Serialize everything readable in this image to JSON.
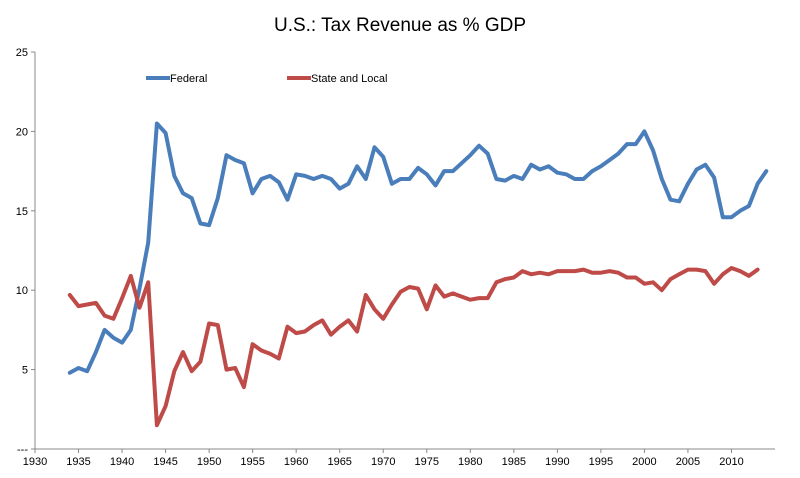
{
  "chart_data": {
    "type": "line",
    "title": "U.S.: Tax Revenue as % GDP",
    "xlabel": "",
    "ylabel": "",
    "xlim": [
      1930,
      2015
    ],
    "ylim": [
      0,
      25
    ],
    "x_ticks": [
      "1930",
      "1935",
      "1940",
      "1945",
      "1950",
      "1955",
      "1960",
      "1965",
      "1970",
      "1975",
      "1980",
      "1985",
      "1990",
      "1995",
      "2000",
      "2005",
      "2010"
    ],
    "y_ticks": [
      "---",
      "5",
      "10",
      "15",
      "20",
      "25"
    ],
    "grid": false,
    "legend": "top-left",
    "x": [
      1934,
      1935,
      1936,
      1937,
      1938,
      1939,
      1940,
      1941,
      1942,
      1943,
      1944,
      1945,
      1946,
      1947,
      1948,
      1949,
      1950,
      1951,
      1952,
      1953,
      1954,
      1955,
      1956,
      1957,
      1958,
      1959,
      1960,
      1961,
      1962,
      1963,
      1964,
      1965,
      1966,
      1967,
      1968,
      1969,
      1970,
      1971,
      1972,
      1973,
      1974,
      1975,
      1976,
      1977,
      1978,
      1979,
      1980,
      1981,
      1982,
      1983,
      1984,
      1985,
      1986,
      1987,
      1988,
      1989,
      1990,
      1991,
      1992,
      1993,
      1994,
      1995,
      1996,
      1997,
      1998,
      1999,
      2000,
      2001,
      2002,
      2003,
      2004,
      2005,
      2006,
      2007,
      2008,
      2009,
      2010,
      2011,
      2012,
      2013,
      2014
    ],
    "series": [
      {
        "name": "Federal",
        "color": "#4a7ebb",
        "values": [
          4.8,
          5.1,
          4.9,
          6.1,
          7.5,
          7.0,
          6.7,
          7.5,
          10.1,
          13.0,
          20.5,
          19.9,
          17.2,
          16.1,
          15.8,
          14.2,
          14.1,
          15.8,
          18.5,
          18.2,
          18.0,
          16.1,
          17.0,
          17.2,
          16.8,
          15.7,
          17.3,
          17.2,
          17.0,
          17.2,
          17.0,
          16.4,
          16.7,
          17.8,
          17.0,
          19.0,
          18.4,
          16.7,
          17.0,
          17.0,
          17.7,
          17.3,
          16.6,
          17.5,
          17.5,
          18.0,
          18.5,
          19.1,
          18.6,
          17.0,
          16.9,
          17.2,
          17.0,
          17.9,
          17.6,
          17.8,
          17.4,
          17.3,
          17.0,
          17.0,
          17.5,
          17.8,
          18.2,
          18.6,
          19.2,
          19.2,
          20.0,
          18.8,
          17.0,
          15.7,
          15.6,
          16.7,
          17.6,
          17.9,
          17.1,
          14.6,
          14.6,
          15.0,
          15.3,
          16.7,
          17.5
        ]
      },
      {
        "name": "State and Local",
        "color": "#be4b48",
        "values": [
          9.7,
          9.0,
          9.1,
          9.2,
          8.4,
          8.2,
          9.5,
          10.9,
          8.9,
          10.5,
          1.5,
          2.7,
          4.9,
          6.1,
          4.9,
          5.5,
          7.9,
          7.8,
          5.0,
          5.1,
          3.9,
          6.6,
          6.2,
          6.0,
          5.7,
          7.7,
          7.3,
          7.4,
          7.8,
          8.1,
          7.2,
          7.7,
          8.1,
          7.4,
          9.7,
          8.8,
          8.2,
          9.1,
          9.9,
          10.2,
          10.1,
          8.8,
          10.3,
          9.6,
          9.8,
          9.6,
          9.4,
          9.5,
          9.5,
          10.5,
          10.7,
          10.8,
          11.2,
          11.0,
          11.1,
          11.0,
          11.2,
          11.2,
          11.2,
          11.3,
          11.1,
          11.1,
          11.2,
          11.1,
          10.8,
          10.8,
          10.4,
          10.5,
          10.0,
          10.7,
          11.0,
          11.3,
          11.3,
          11.2,
          10.4,
          11.0,
          11.4,
          11.2,
          10.9,
          11.3,
          null
        ]
      }
    ]
  }
}
